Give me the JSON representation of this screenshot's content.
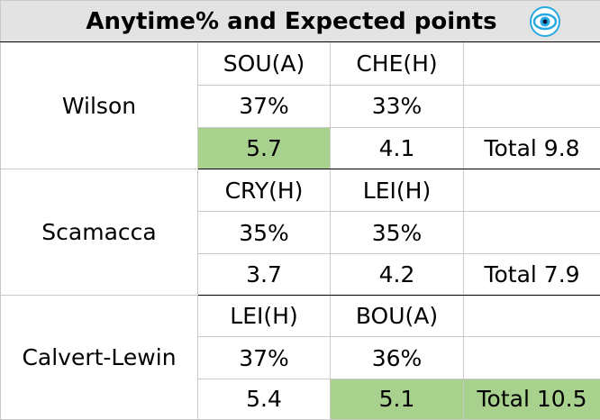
{
  "title": "Anytime% and Expected points",
  "colors": {
    "header_bg": "#e3e3e3",
    "highlight": "#a9d18e",
    "eye_icon": "#27a9e1"
  },
  "players": [
    {
      "name": "Wilson",
      "fixtures": [
        "SOU(A)",
        "CHE(H)"
      ],
      "anytime": [
        "37%",
        "33%"
      ],
      "expected": [
        "5.7",
        "4.1"
      ],
      "total": "Total 9.8",
      "highlighted": [
        true,
        false,
        false
      ]
    },
    {
      "name": "Scamacca",
      "fixtures": [
        "CRY(H)",
        "LEI(H)"
      ],
      "anytime": [
        "35%",
        "35%"
      ],
      "expected": [
        "3.7",
        "4.2"
      ],
      "total": "Total 7.9",
      "highlighted": [
        false,
        false,
        false
      ]
    },
    {
      "name": "Calvert-Lewin",
      "fixtures": [
        "LEI(H)",
        "BOU(A)"
      ],
      "anytime": [
        "37%",
        "36%"
      ],
      "expected": [
        "5.4",
        "5.1"
      ],
      "total": "Total 10.5",
      "highlighted": [
        false,
        true,
        true
      ]
    }
  ]
}
